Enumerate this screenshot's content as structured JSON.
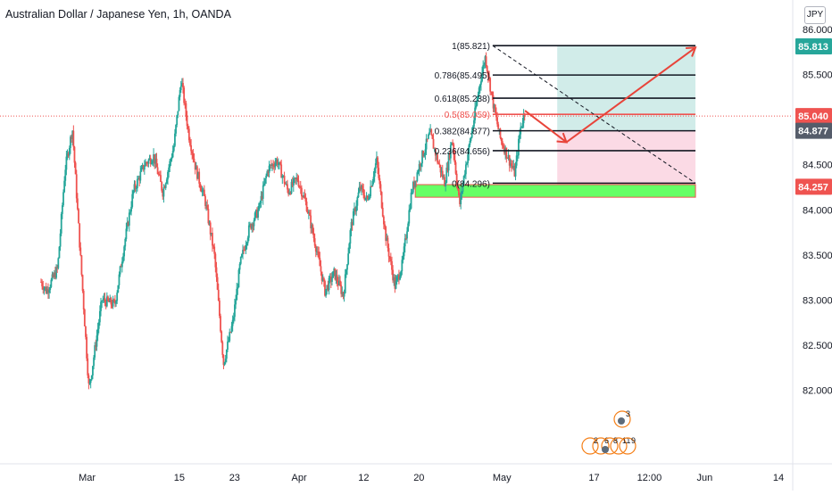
{
  "header": {
    "title": "Australian Dollar / Japanese Yen, 1h, OANDA",
    "currency_badge": "JPY"
  },
  "colors": {
    "up": "#26a69a",
    "down": "#ef5350",
    "fib_line": "#131722",
    "fib_mid": "#ef5350",
    "support_zone": "#66ff66",
    "target_zone": "#b2dfdb",
    "stop_zone": "#f8bbd0",
    "arrow": "#e8443a",
    "current_badge": "#ef5350",
    "target_badge": "#26a69a",
    "level_badge": "#555c6a"
  },
  "chart_data": {
    "type": "candlestick",
    "title": "Australian Dollar / Japanese Yen, 1h, OANDA",
    "ylim": [
      81.6,
      86.05
    ],
    "yticks": [
      "86.000",
      "85.500",
      "85.000",
      "84.500",
      "84.000",
      "83.500",
      "83.000",
      "82.500",
      "82.000"
    ],
    "xticks": [
      "Mar",
      "15",
      "23",
      "Apr",
      "12",
      "20",
      "May",
      "17",
      "12:00",
      "Jun",
      "14"
    ],
    "price_path": [
      {
        "t": 0.0,
        "p": 83.2
      },
      {
        "t": 0.3,
        "p": 83.1
      },
      {
        "t": 0.9,
        "p": 83.35
      },
      {
        "t": 1.3,
        "p": 84.45
      },
      {
        "t": 1.7,
        "p": 84.9
      },
      {
        "t": 2.1,
        "p": 83.6
      },
      {
        "t": 2.6,
        "p": 82.0
      },
      {
        "t": 3.3,
        "p": 83.0
      },
      {
        "t": 4.0,
        "p": 82.95
      },
      {
        "t": 4.5,
        "p": 83.6
      },
      {
        "t": 5.0,
        "p": 84.2
      },
      {
        "t": 5.6,
        "p": 84.5
      },
      {
        "t": 6.1,
        "p": 84.6
      },
      {
        "t": 6.6,
        "p": 84.2
      },
      {
        "t": 7.2,
        "p": 84.7
      },
      {
        "t": 7.6,
        "p": 85.45
      },
      {
        "t": 8.0,
        "p": 84.85
      },
      {
        "t": 8.4,
        "p": 84.45
      },
      {
        "t": 8.9,
        "p": 84.1
      },
      {
        "t": 9.4,
        "p": 83.5
      },
      {
        "t": 9.9,
        "p": 82.3
      },
      {
        "t": 10.4,
        "p": 82.75
      },
      {
        "t": 10.8,
        "p": 83.4
      },
      {
        "t": 11.3,
        "p": 83.8
      },
      {
        "t": 11.8,
        "p": 84.0
      },
      {
        "t": 12.3,
        "p": 84.45
      },
      {
        "t": 12.8,
        "p": 84.55
      },
      {
        "t": 13.4,
        "p": 84.2
      },
      {
        "t": 13.9,
        "p": 84.35
      },
      {
        "t": 14.4,
        "p": 84.05
      },
      {
        "t": 14.9,
        "p": 83.6
      },
      {
        "t": 15.4,
        "p": 83.1
      },
      {
        "t": 15.9,
        "p": 83.3
      },
      {
        "t": 16.4,
        "p": 83.05
      },
      {
        "t": 16.8,
        "p": 83.8
      },
      {
        "t": 17.3,
        "p": 84.25
      },
      {
        "t": 17.7,
        "p": 84.1
      },
      {
        "t": 18.2,
        "p": 84.55
      },
      {
        "t": 18.7,
        "p": 83.7
      },
      {
        "t": 19.2,
        "p": 83.15
      },
      {
        "t": 19.6,
        "p": 83.4
      },
      {
        "t": 20.1,
        "p": 84.2
      },
      {
        "t": 20.6,
        "p": 84.55
      },
      {
        "t": 21.1,
        "p": 84.85
      },
      {
        "t": 21.5,
        "p": 84.55
      },
      {
        "t": 21.9,
        "p": 84.3
      },
      {
        "t": 22.3,
        "p": 84.8
      },
      {
        "t": 22.7,
        "p": 84.05
      },
      {
        "t": 23.0,
        "p": 84.45
      },
      {
        "t": 23.4,
        "p": 84.9
      },
      {
        "t": 23.8,
        "p": 85.4
      },
      {
        "t": 24.1,
        "p": 85.7
      },
      {
        "t": 24.5,
        "p": 85.2
      },
      {
        "t": 24.9,
        "p": 84.8
      },
      {
        "t": 25.3,
        "p": 84.6
      },
      {
        "t": 25.7,
        "p": 84.4
      },
      {
        "t": 26.0,
        "p": 84.9
      },
      {
        "t": 26.25,
        "p": 85.1
      }
    ],
    "date_slots": {
      "start": 0.0,
      "end": 40.0,
      "xticks_at": [
        2.5,
        7.5,
        10.5,
        14.0,
        17.5,
        20.5,
        25.0,
        30.0,
        33.0,
        36.0,
        40.0
      ]
    },
    "fibonacci": {
      "levels": [
        {
          "ratio": "1",
          "price": 85.821,
          "label": "1(85.821)"
        },
        {
          "ratio": "0.786",
          "price": 85.495,
          "label": "0.786(85.495)"
        },
        {
          "ratio": "0.618",
          "price": 85.238,
          "label": "0.618(85.238)"
        },
        {
          "ratio": "0.5",
          "price": 85.059,
          "label": "0.5(85.059)"
        },
        {
          "ratio": "0.382",
          "price": 84.877,
          "label": "0.382(84.877)"
        },
        {
          "ratio": "0.236",
          "price": 84.656,
          "label": "0.236(84.656)"
        },
        {
          "ratio": "0",
          "price": 84.296,
          "label": "0(84.296)"
        }
      ],
      "t_start": 24.5,
      "t_end": 35.5
    },
    "support_zone": {
      "top": 84.28,
      "bottom": 84.14,
      "t_start": 20.3,
      "t_end": 35.5
    },
    "position": {
      "entry": 84.877,
      "target": 85.813,
      "stop": 84.257,
      "t_start": 28.0,
      "t_end": 35.5
    },
    "projection": [
      {
        "t": 26.25,
        "p": 85.1
      },
      {
        "t": 28.5,
        "p": 84.75
      },
      {
        "t": 35.5,
        "p": 85.8
      }
    ],
    "current_price": 85.04,
    "price_badges": [
      {
        "label": "85.813",
        "price": 85.813,
        "kind": "target"
      },
      {
        "label": "85.040",
        "price": 85.04,
        "kind": "current"
      },
      {
        "label": "84.877",
        "price": 84.877,
        "kind": "level"
      },
      {
        "label": "84.257",
        "price": 84.257,
        "kind": "current"
      }
    ],
    "event_markers": [
      "3",
      "2",
      "6",
      "8",
      "11",
      "9"
    ]
  }
}
